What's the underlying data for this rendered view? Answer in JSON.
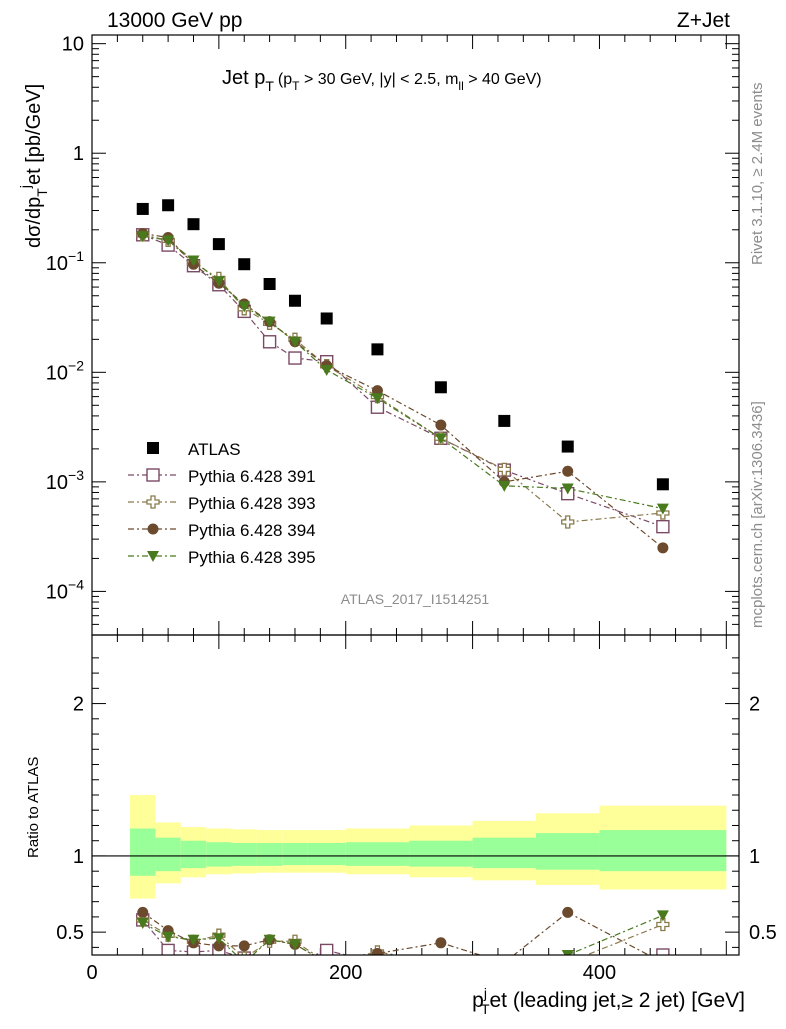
{
  "header": {
    "left": "13000 GeV pp",
    "right": "Z+Jet"
  },
  "plot_title": {
    "main": "Jet p",
    "main_sub": "T",
    "cuts_open": "(p",
    "cuts_sub": "T",
    "cuts_mid": " > 30 GeV, |y| < 2.5, m",
    "cuts_sub2": "ll",
    "cuts_close": " > 40 GeV)"
  },
  "side_labels": {
    "rivet": "Rivet 3.1.10, ≥ 2.4M events",
    "mcplots": "mcplots.cern.ch [arXiv:1306.3436]"
  },
  "watermark": "ATLAS_2017_I1514251",
  "colors": {
    "atlas": "#000000",
    "p391": "#7a4a65",
    "p393": "#8a7a4a",
    "p394": "#6b4a2e",
    "p395": "#4a7a1e",
    "band_yellow": "#ffff99",
    "band_green": "#99ff99"
  },
  "chart_data": [
    {
      "type": "scatter",
      "title": "Jet pT (pT > 30 GeV, |y| < 2.5, mll > 40 GeV)",
      "ylabel": "dσ/dp_T^jet [pb/GeV]",
      "ylabel_parts": {
        "a": "dσ/dp",
        "sub": "T",
        "sup": "j",
        "b": "et [pb/GeV]"
      },
      "yscale": "log",
      "ylim": [
        4e-05,
        12
      ],
      "xlim": [
        0,
        510
      ],
      "yticks": [
        {
          "v": 10,
          "label": "10"
        },
        {
          "v": 1,
          "label": "1"
        },
        {
          "v": 0.1,
          "base": "10",
          "exp": "−1"
        },
        {
          "v": 0.01,
          "base": "10",
          "exp": "−2"
        },
        {
          "v": 0.001,
          "base": "10",
          "exp": "−3"
        },
        {
          "v": 0.0001,
          "base": "10",
          "exp": "−4"
        }
      ],
      "x": [
        40,
        60,
        80,
        100,
        120,
        140,
        160,
        185,
        225,
        275,
        325,
        375,
        450
      ],
      "series": [
        {
          "name": "ATLAS",
          "key": "atlas",
          "marker": "square-filled",
          "values": [
            0.31,
            0.335,
            0.225,
            0.148,
            0.097,
            0.064,
            0.045,
            0.031,
            0.0162,
            0.0073,
            0.0036,
            0.0021,
            0.00095
          ]
        },
        {
          "name": "Pythia 6.428 391",
          "key": "p391",
          "marker": "square-open",
          "values": [
            0.18,
            0.145,
            0.094,
            0.063,
            0.036,
            0.019,
            0.0135,
            0.0125,
            0.0048,
            0.0025,
            0.00128,
            0.00078,
            0.00039
          ]
        },
        {
          "name": "Pythia 6.428 393",
          "key": "p393",
          "marker": "cross-open",
          "values": [
            0.18,
            0.16,
            0.1,
            0.072,
            0.038,
            0.028,
            0.02,
            0.0115,
            0.006,
            0.0025,
            0.0013,
            0.00043,
            0.00052
          ]
        },
        {
          "name": "Pythia 6.428 394",
          "key": "p394",
          "marker": "circle-filled",
          "values": [
            0.185,
            0.17,
            0.097,
            0.065,
            0.042,
            0.029,
            0.019,
            0.0115,
            0.0068,
            0.0033,
            0.001,
            0.00125,
            0.00025
          ]
        },
        {
          "name": "Pythia 6.428 395",
          "key": "p395",
          "marker": "triangle-filled",
          "values": [
            0.175,
            0.16,
            0.105,
            0.068,
            0.04,
            0.029,
            0.019,
            0.0105,
            0.0058,
            0.0025,
            0.00092,
            0.00087,
            0.00057
          ]
        }
      ]
    },
    {
      "type": "scatter",
      "ylabel": "Ratio to ATLAS",
      "xlabel": "p_T^jet (leading jet,≥ 2 jet) [GeV]",
      "xlabel_parts": {
        "a": "p",
        "sub": "T",
        "sup": "j",
        "b": "et (leading jet,≥ 2 jet) [GeV]"
      },
      "ylim": [
        0.35,
        2.45
      ],
      "xlim": [
        0,
        510
      ],
      "xticks": [
        {
          "v": 0,
          "label": "0"
        },
        {
          "v": 200,
          "label": "200"
        },
        {
          "v": 400,
          "label": "400"
        }
      ],
      "yticks": [
        {
          "v": 0.5,
          "label": "0.5"
        },
        {
          "v": 1,
          "label": "1"
        },
        {
          "v": 2,
          "label": "2"
        }
      ],
      "bins": [
        [
          30,
          50
        ],
        [
          50,
          70
        ],
        [
          70,
          90
        ],
        [
          90,
          110
        ],
        [
          110,
          130
        ],
        [
          130,
          150
        ],
        [
          150,
          170
        ],
        [
          170,
          200
        ],
        [
          200,
          250
        ],
        [
          250,
          300
        ],
        [
          300,
          350
        ],
        [
          350,
          400
        ],
        [
          400,
          500
        ]
      ],
      "band_green": [
        [
          0.87,
          1.18
        ],
        [
          0.9,
          1.12
        ],
        [
          0.92,
          1.1
        ],
        [
          0.93,
          1.09
        ],
        [
          0.935,
          1.085
        ],
        [
          0.935,
          1.085
        ],
        [
          0.94,
          1.085
        ],
        [
          0.94,
          1.085
        ],
        [
          0.935,
          1.09
        ],
        [
          0.93,
          1.1
        ],
        [
          0.92,
          1.12
        ],
        [
          0.91,
          1.15
        ],
        [
          0.9,
          1.17
        ]
      ],
      "band_yellow": [
        [
          0.72,
          1.4
        ],
        [
          0.82,
          1.22
        ],
        [
          0.86,
          1.19
        ],
        [
          0.88,
          1.18
        ],
        [
          0.885,
          1.175
        ],
        [
          0.89,
          1.17
        ],
        [
          0.89,
          1.17
        ],
        [
          0.89,
          1.17
        ],
        [
          0.88,
          1.18
        ],
        [
          0.86,
          1.2
        ],
        [
          0.84,
          1.23
        ],
        [
          0.81,
          1.28
        ],
        [
          0.78,
          1.33
        ]
      ],
      "x": [
        40,
        60,
        80,
        100,
        120,
        140,
        160,
        185,
        225,
        275,
        325,
        375,
        450
      ],
      "series": [
        {
          "name": "Pythia 6.428 391",
          "key": "p391",
          "marker": "square-open",
          "values": [
            0.58,
            0.38,
            0.37,
            0.38,
            0.33,
            0.3,
            0.3,
            0.38,
            0.3,
            0.3,
            0.3,
            0.3,
            0.35
          ]
        },
        {
          "name": "Pythia 6.428 393",
          "key": "p393",
          "marker": "cross-open",
          "values": [
            0.58,
            0.48,
            0.44,
            0.48,
            0.33,
            0.44,
            0.44,
            0.3,
            0.37,
            0.3,
            0.3,
            0.3,
            0.55
          ]
        },
        {
          "name": "Pythia 6.428 394",
          "key": "p394",
          "marker": "circle-filled",
          "values": [
            0.63,
            0.51,
            0.43,
            0.41,
            0.41,
            0.45,
            0.42,
            0.3,
            0.36,
            0.43,
            0.3,
            0.63,
            0.3
          ]
        },
        {
          "name": "Pythia 6.428 395",
          "key": "p395",
          "marker": "triangle-filled",
          "values": [
            0.56,
            0.47,
            0.45,
            0.46,
            0.3,
            0.45,
            0.42,
            0.3,
            0.3,
            0.3,
            0.3,
            0.35,
            0.61
          ]
        }
      ]
    }
  ]
}
